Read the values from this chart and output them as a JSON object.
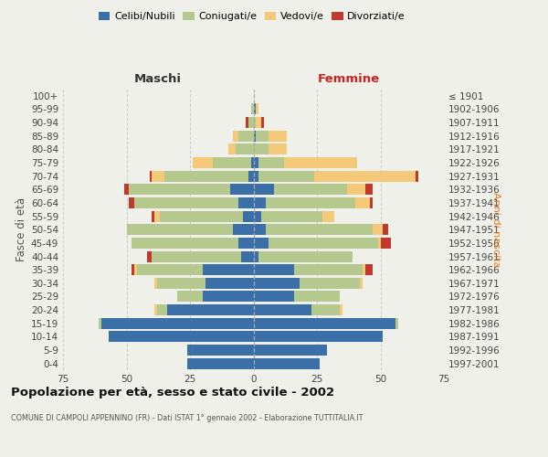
{
  "age_groups": [
    "100+",
    "95-99",
    "90-94",
    "85-89",
    "80-84",
    "75-79",
    "70-74",
    "65-69",
    "60-64",
    "55-59",
    "50-54",
    "45-49",
    "40-44",
    "35-39",
    "30-34",
    "25-29",
    "20-24",
    "15-19",
    "10-14",
    "5-9",
    "0-4"
  ],
  "birth_years": [
    "≤ 1901",
    "1902-1906",
    "1907-1911",
    "1912-1916",
    "1917-1921",
    "1922-1926",
    "1927-1931",
    "1932-1936",
    "1937-1941",
    "1942-1946",
    "1947-1951",
    "1952-1956",
    "1957-1961",
    "1962-1966",
    "1967-1971",
    "1972-1976",
    "1977-1981",
    "1982-1986",
    "1987-1991",
    "1992-1996",
    "1997-2001"
  ],
  "males": {
    "celibi": [
      0,
      0,
      0,
      0,
      0,
      1,
      2,
      9,
      6,
      4,
      8,
      6,
      5,
      20,
      19,
      20,
      34,
      60,
      57,
      26,
      26
    ],
    "coniugati": [
      0,
      1,
      2,
      6,
      7,
      15,
      33,
      40,
      41,
      33,
      42,
      42,
      35,
      26,
      19,
      10,
      4,
      1,
      0,
      0,
      0
    ],
    "vedovi": [
      0,
      0,
      0,
      2,
      3,
      8,
      5,
      0,
      0,
      2,
      0,
      0,
      0,
      1,
      1,
      0,
      1,
      0,
      0,
      0,
      0
    ],
    "divorziati": [
      0,
      0,
      1,
      0,
      0,
      0,
      1,
      2,
      2,
      1,
      0,
      0,
      2,
      1,
      0,
      0,
      0,
      0,
      0,
      0,
      0
    ]
  },
  "females": {
    "nubili": [
      0,
      1,
      0,
      1,
      0,
      2,
      2,
      8,
      5,
      3,
      5,
      6,
      2,
      16,
      18,
      16,
      23,
      56,
      51,
      29,
      26
    ],
    "coniugate": [
      0,
      0,
      1,
      5,
      6,
      10,
      22,
      29,
      35,
      24,
      42,
      43,
      37,
      27,
      24,
      18,
      11,
      1,
      0,
      0,
      0
    ],
    "vedove": [
      0,
      1,
      2,
      7,
      7,
      29,
      40,
      7,
      6,
      5,
      4,
      1,
      0,
      1,
      1,
      0,
      1,
      0,
      0,
      0,
      0
    ],
    "divorziate": [
      0,
      0,
      1,
      0,
      0,
      0,
      1,
      3,
      1,
      0,
      2,
      4,
      0,
      3,
      0,
      0,
      0,
      0,
      0,
      0,
      0
    ]
  },
  "colors": {
    "celibi_nubili": "#3a6fa8",
    "coniugati": "#b5c98e",
    "vedovi": "#f5c97a",
    "divorziati": "#c0392b"
  },
  "xlim": 75,
  "title": "Popolazione per età, sesso e stato civile - 2002",
  "subtitle": "COMUNE DI CAMPOLI APPENNINO (FR) - Dati ISTAT 1° gennaio 2002 - Elaborazione TUTTITALIA.IT",
  "xlabel_left": "Maschi",
  "xlabel_right": "Femmine",
  "ylabel_left": "Fasce di età",
  "ylabel_right": "Anni di nascita",
  "bg_color": "#f0f0ea",
  "grid_color": "#cccccc"
}
